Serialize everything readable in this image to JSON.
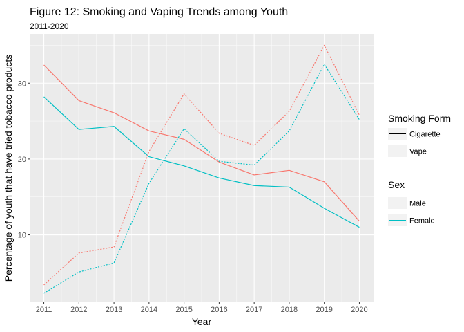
{
  "chart_data": {
    "type": "line",
    "title": "Figure 12: Smoking and Vaping Trends among Youth",
    "subtitle": "2011-2020",
    "xlabel": "Year",
    "ylabel": "Percentage of youth that have tried tobacco products",
    "x": [
      2011,
      2012,
      2013,
      2014,
      2015,
      2016,
      2017,
      2018,
      2019,
      2020
    ],
    "x_tick_labels": [
      "2011",
      "2012",
      "2013",
      "2014",
      "2015",
      "2016",
      "2017",
      "2018",
      "2019",
      "2020"
    ],
    "y_ticks": [
      10,
      20,
      30
    ],
    "y_tick_labels": [
      "10",
      "20",
      "30"
    ],
    "ylim": [
      1.2,
      36.5
    ],
    "grid": true,
    "panel_color": "#ebebeb",
    "legend_position": "right",
    "legend": {
      "linetype_title": "Smoking Form",
      "linetype_entries": [
        "Cigarette",
        "Vape"
      ],
      "color_title": "Sex",
      "color_entries": [
        "Male",
        "Female"
      ]
    },
    "series": [
      {
        "sex": "Male",
        "form": "Cigarette",
        "color": "#F8766D",
        "dash": "solid",
        "values": [
          32.4,
          27.7,
          26.1,
          23.7,
          22.6,
          19.6,
          17.9,
          18.5,
          17.0,
          11.8
        ]
      },
      {
        "sex": "Female",
        "form": "Cigarette",
        "color": "#00BFC4",
        "dash": "solid",
        "values": [
          28.2,
          23.9,
          24.3,
          20.3,
          19.1,
          17.5,
          16.5,
          16.3,
          13.5,
          11.0
        ]
      },
      {
        "sex": "Male",
        "form": "Vape",
        "color": "#F8766D",
        "dash": "dotted",
        "values": [
          3.4,
          7.6,
          8.4,
          21.0,
          28.6,
          23.4,
          21.8,
          26.3,
          35.0,
          25.8
        ]
      },
      {
        "sex": "Female",
        "form": "Vape",
        "color": "#00BFC4",
        "dash": "dotted",
        "values": [
          2.3,
          5.1,
          6.3,
          16.8,
          24.0,
          19.7,
          19.2,
          23.7,
          32.5,
          25.2
        ]
      }
    ]
  }
}
